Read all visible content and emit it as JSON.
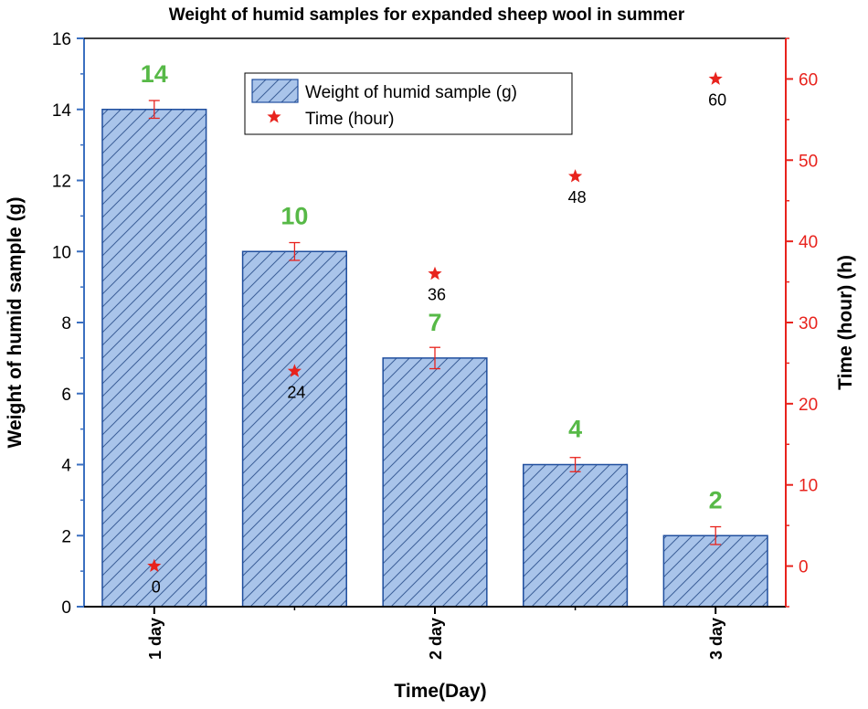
{
  "chart_data": {
    "type": "bar",
    "title": "Weight of humid samples for expanded sheep wool in summer",
    "xlabel": "Time(Day)",
    "ylabel": "Weight of humid sample (g)",
    "y2label": "Time (hour) (h)",
    "x_tick_labels": [
      "1 day",
      "2 day",
      "3 day"
    ],
    "ylim": [
      0,
      16
    ],
    "y_ticks": [
      0,
      2,
      4,
      6,
      8,
      10,
      12,
      14,
      16
    ],
    "y2lim": [
      -5,
      65
    ],
    "y2_ticks": [
      0,
      10,
      20,
      30,
      40,
      50,
      60
    ],
    "series": [
      {
        "name": "Weight of humid sample (g)",
        "type": "bar",
        "axis": "left",
        "values": [
          14,
          10,
          7,
          4,
          2
        ],
        "errors": [
          0.25,
          0.25,
          0.3,
          0.2,
          0.25
        ],
        "data_labels": [
          "14",
          "10",
          "7",
          "4",
          "2"
        ],
        "color": "#a9c4ea",
        "edge_color": "#1f4e9e",
        "hatch": "diagonal"
      },
      {
        "name": "Time (hour)",
        "type": "scatter",
        "axis": "right",
        "marker": "star",
        "x_positions": [
          1,
          2,
          3,
          4,
          5
        ],
        "values": [
          0,
          24,
          36,
          48,
          60
        ],
        "data_labels": [
          "0",
          "24",
          "36",
          "48",
          "60"
        ],
        "color": "#e8231d"
      }
    ],
    "legend_position": "top-center",
    "grid": false
  },
  "colors": {
    "left_axis": "#3a6fc0",
    "right_axis": "#e8231d",
    "data_label_green": "#57b947"
  }
}
